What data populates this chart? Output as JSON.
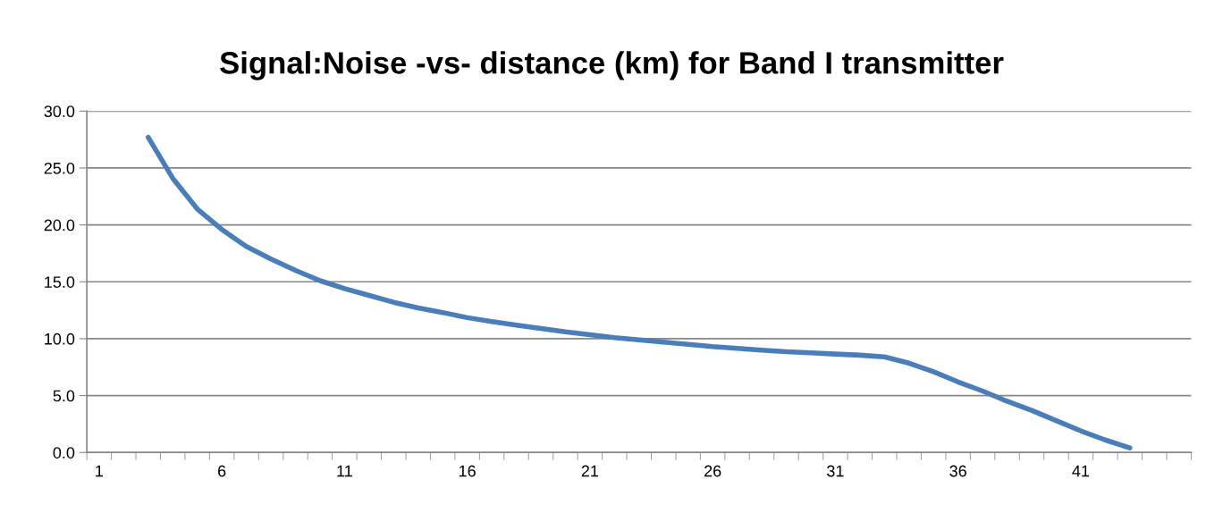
{
  "chart_data": {
    "type": "line",
    "title": "Signal:Noise -vs- distance (km) for Band I transmitter",
    "categories": [
      "1",
      null,
      null,
      null,
      null,
      "6",
      null,
      null,
      null,
      null,
      "11",
      null,
      null,
      null,
      null,
      "16",
      null,
      null,
      null,
      null,
      "21",
      null,
      null,
      null,
      null,
      "26",
      null,
      null,
      null,
      null,
      "31",
      null,
      null,
      null,
      null,
      "36",
      null,
      null,
      null,
      null,
      "41",
      null,
      null,
      null,
      null
    ],
    "series": [
      {
        "color": "#4a7ebb",
        "values": [
          null,
          null,
          27.7,
          24.1,
          21.4,
          19.6,
          18.1,
          17.0,
          16.0,
          15.1,
          14.4,
          13.8,
          13.2,
          12.7,
          12.3,
          11.85,
          11.5,
          11.2,
          10.9,
          10.6,
          10.35,
          10.1,
          9.9,
          9.7,
          9.5,
          9.3,
          9.15,
          9.0,
          8.85,
          8.75,
          8.65,
          8.55,
          8.4,
          7.85,
          7.1,
          6.2,
          5.4,
          4.5,
          3.7,
          2.8,
          1.9,
          1.1,
          0.4,
          null,
          null
        ]
      }
    ],
    "ylim": [
      0,
      30
    ],
    "yticks": [
      {
        "value": 0,
        "label": "0.0"
      },
      {
        "value": 5,
        "label": "5.0"
      },
      {
        "value": 10,
        "label": "10.0"
      },
      {
        "value": 15,
        "label": "15.0"
      },
      {
        "value": 20,
        "label": "20.0"
      },
      {
        "value": 25,
        "label": "25.0"
      },
      {
        "value": 30,
        "label": "30.0"
      }
    ],
    "grid": "y",
    "legend": false,
    "marker": "none",
    "line_style": "solid"
  }
}
